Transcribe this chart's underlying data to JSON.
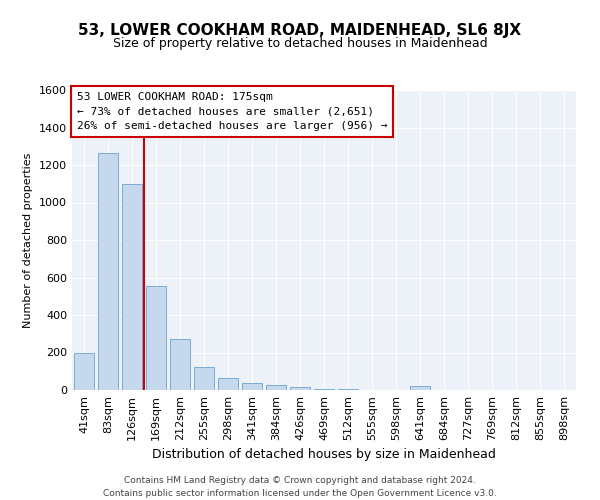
{
  "title_line1": "53, LOWER COOKHAM ROAD, MAIDENHEAD, SL6 8JX",
  "title_line2": "Size of property relative to detached houses in Maidenhead",
  "xlabel": "Distribution of detached houses by size in Maidenhead",
  "ylabel": "Number of detached properties",
  "bar_labels": [
    "41sqm",
    "83sqm",
    "126sqm",
    "169sqm",
    "212sqm",
    "255sqm",
    "298sqm",
    "341sqm",
    "384sqm",
    "426sqm",
    "469sqm",
    "512sqm",
    "555sqm",
    "598sqm",
    "641sqm",
    "684sqm",
    "727sqm",
    "769sqm",
    "812sqm",
    "855sqm",
    "898sqm"
  ],
  "bar_values": [
    197,
    1265,
    1097,
    553,
    270,
    125,
    65,
    35,
    25,
    14,
    8,
    4,
    0,
    0,
    20,
    0,
    0,
    0,
    0,
    0,
    0
  ],
  "bar_color": "#c5d8ee",
  "bar_edge_color": "#7aadd4",
  "vline_x_index": 3,
  "vline_color": "#cc0000",
  "ylim": [
    0,
    1600
  ],
  "yticks": [
    0,
    200,
    400,
    600,
    800,
    1000,
    1200,
    1400,
    1600
  ],
  "annotation_text": "53 LOWER COOKHAM ROAD: 175sqm\n← 73% of detached houses are smaller (2,651)\n26% of semi-detached houses are larger (956) →",
  "annotation_box_facecolor": "#ffffff",
  "annotation_box_edgecolor": "#cc0000",
  "plot_bg_color": "#edf2f9",
  "grid_color": "#ffffff",
  "fig_bg_color": "#ffffff",
  "footer_line1": "Contains HM Land Registry data © Crown copyright and database right 2024.",
  "footer_line2": "Contains public sector information licensed under the Open Government Licence v3.0.",
  "title1_fontsize": 11,
  "title2_fontsize": 9,
  "ylabel_fontsize": 8,
  "xlabel_fontsize": 9,
  "tick_fontsize": 8,
  "annot_fontsize": 8
}
